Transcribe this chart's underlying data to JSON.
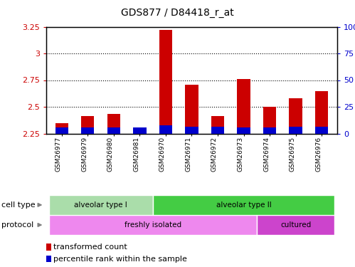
{
  "title": "GDS877 / D84418_r_at",
  "samples": [
    "GSM26977",
    "GSM26979",
    "GSM26980",
    "GSM26981",
    "GSM26970",
    "GSM26971",
    "GSM26972",
    "GSM26973",
    "GSM26974",
    "GSM26975",
    "GSM26976"
  ],
  "red_values": [
    2.35,
    2.41,
    2.43,
    2.28,
    3.22,
    2.71,
    2.41,
    2.76,
    2.5,
    2.58,
    2.65
  ],
  "blue_values": [
    0.055,
    0.06,
    0.055,
    0.055,
    0.08,
    0.065,
    0.065,
    0.06,
    0.055,
    0.065,
    0.065
  ],
  "ylim_left": [
    2.25,
    3.25
  ],
  "yticks_left": [
    2.25,
    2.5,
    2.75,
    3.0,
    3.25
  ],
  "yticks_right": [
    0,
    25,
    50,
    75,
    100
  ],
  "ytick_labels_left": [
    "2.25",
    "2.5",
    "2.75",
    "3",
    "3.25"
  ],
  "ytick_labels_right": [
    "0",
    "25",
    "50",
    "75",
    "100%"
  ],
  "cell_type_groups": [
    {
      "label": "alveolar type I",
      "start": 0,
      "end": 3,
      "color": "#aaddaa"
    },
    {
      "label": "alveolar type II",
      "start": 4,
      "end": 10,
      "color": "#44cc44"
    }
  ],
  "protocol_groups": [
    {
      "label": "freshly isolated",
      "start": 0,
      "end": 7,
      "color": "#ee88ee"
    },
    {
      "label": "cultured",
      "start": 8,
      "end": 10,
      "color": "#cc44cc"
    }
  ],
  "bar_width": 0.5,
  "red_color": "#CC0000",
  "blue_color": "#0000CC",
  "baseline": 2.25,
  "bg_color": "#FFFFFF",
  "label_color_left": "#CC0000",
  "label_color_right": "#0000CC",
  "legend_items": [
    {
      "label": "transformed count",
      "color": "#CC0000"
    },
    {
      "label": "percentile rank within the sample",
      "color": "#0000CC"
    }
  ]
}
